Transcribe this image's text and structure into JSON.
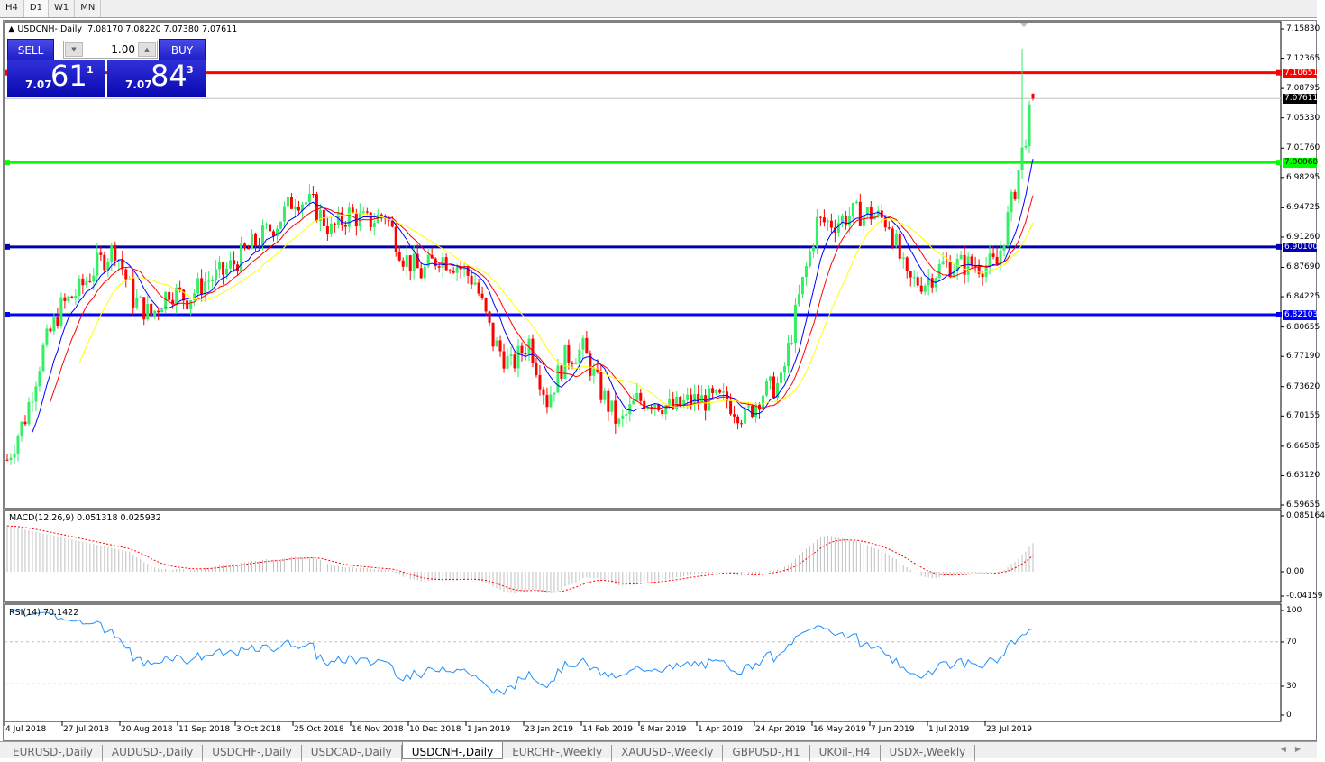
{
  "timeframes": [
    {
      "label": "H4",
      "active": false
    },
    {
      "label": "D1",
      "active": true
    },
    {
      "label": "W1",
      "active": false
    },
    {
      "label": "MN",
      "active": false
    }
  ],
  "chart": {
    "header": "USDCNH-,Daily  7.08170 7.08220 7.07380 7.07611",
    "symbol": "USDCNH-,Daily",
    "ohlc": "7.08170 7.08220 7.07380 7.07611"
  },
  "trade_panel": {
    "sell_label": "SELL",
    "buy_label": "BUY",
    "lot": "1.00",
    "sell": {
      "prefix": "7.07",
      "big": "61",
      "sup": "1"
    },
    "buy": {
      "prefix": "7.07",
      "big": "84",
      "sup": "3"
    }
  },
  "price_axis": [
    "7.15830",
    "7.12365",
    "7.08795",
    "7.05330",
    "7.01760",
    "6.98295",
    "6.94725",
    "6.91260",
    "6.87690",
    "6.84225",
    "6.80655",
    "6.77190",
    "6.73620",
    "6.70155",
    "6.66585",
    "6.63120",
    "6.59655"
  ],
  "levels": [
    {
      "price": "7.10651",
      "color": "#ff0000"
    },
    {
      "price": "7.00068",
      "color": "#00ff00"
    },
    {
      "price": "6.90100",
      "color": "#0000b0"
    },
    {
      "price": "6.82103",
      "color": "#0000ff"
    }
  ],
  "current_price": {
    "price": "7.07611",
    "color": "#000000"
  },
  "macd": {
    "label": "MACD(12,26,9) 0.051318 0.025932",
    "axis": [
      "0.085164",
      "0.00",
      "-0.04159"
    ]
  },
  "rsi": {
    "label": "RSI(14) 70.1422",
    "axis": [
      "100",
      "70",
      "30",
      "0"
    ]
  },
  "time_axis": [
    "4 Jul 2018",
    "27 Jul 2018",
    "20 Aug 2018",
    "11 Sep 2018",
    "3 Oct 2018",
    "25 Oct 2018",
    "16 Nov 2018",
    "10 Dec 2018",
    "1 Jan 2019",
    "23 Jan 2019",
    "14 Feb 2019",
    "8 Mar 2019",
    "1 Apr 2019",
    "24 Apr 2019",
    "16 May 2019",
    "7 Jun 2019",
    "1 Jul 2019",
    "23 Jul 2019"
  ],
  "tabs": [
    {
      "label": "EURUSD-,Daily",
      "active": false
    },
    {
      "label": "AUDUSD-,Daily",
      "active": false
    },
    {
      "label": "USDCHF-,Daily",
      "active": false
    },
    {
      "label": "USDCAD-,Daily",
      "active": false
    },
    {
      "label": "USDCNH-,Daily",
      "active": true
    },
    {
      "label": "EURCHF-,Weekly",
      "active": false
    },
    {
      "label": "XAUUSD-,Weekly",
      "active": false
    },
    {
      "label": "GBPUSD-,H1",
      "active": false
    },
    {
      "label": "UKOil-,H4",
      "active": false
    },
    {
      "label": "USDX-,Weekly",
      "active": false
    }
  ],
  "chart_data": {
    "type": "candlestick",
    "symbol": "USDCNH-,Daily",
    "ylim": [
      6.59655,
      7.1583
    ],
    "weekly_closes_approx": [
      6.65,
      6.7,
      6.78,
      6.83,
      6.85,
      6.88,
      6.9,
      6.84,
      6.82,
      6.85,
      6.84,
      6.86,
      6.87,
      6.89,
      6.91,
      6.93,
      6.96,
      6.95,
      6.92,
      6.94,
      6.93,
      6.94,
      6.89,
      6.87,
      6.89,
      6.88,
      6.86,
      6.79,
      6.76,
      6.79,
      6.72,
      6.77,
      6.78,
      6.73,
      6.69,
      6.72,
      6.72,
      6.71,
      6.72,
      6.72,
      6.72,
      6.7,
      6.73,
      6.74,
      6.84,
      6.93,
      6.93,
      6.94,
      6.94,
      6.93,
      6.86,
      6.86,
      6.88,
      6.88,
      6.88,
      6.88,
      6.97,
      7.076
    ],
    "last_bar": {
      "open": 7.0817,
      "high": 7.0822,
      "low": 7.0738,
      "close": 7.07611
    },
    "colors": {
      "bull": "#33ee66",
      "bear": "#ff0000",
      "ma_fast": "#0000ff",
      "ma_mid": "#ff0000",
      "ma_slow": "#ffff00",
      "rsi": "#1e90ff",
      "macd_hist": "#c0c0c0",
      "macd_signal": "#ff0000"
    },
    "grid": false
  }
}
